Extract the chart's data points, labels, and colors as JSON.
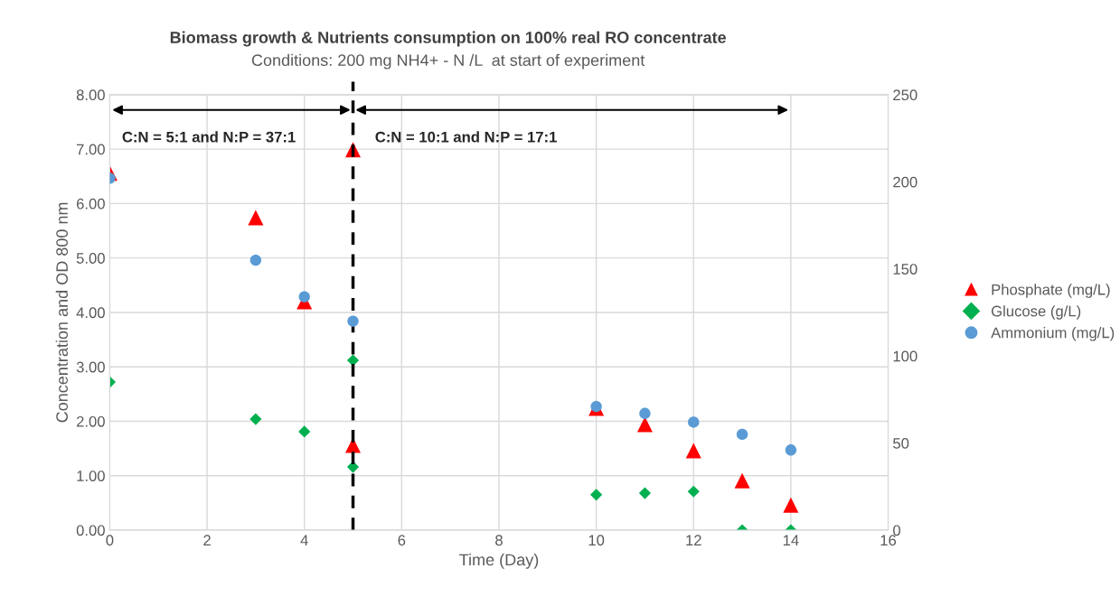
{
  "chart_data": {
    "type": "scatter",
    "title": "Biomass growth & Nutrients consumption on 100% real RO concentrate",
    "subtitle": "Conditions: 200 mg NH4+ - N /L  at start of experiment",
    "xlabel": "Time (Day)",
    "ylabel": "Concentration and OD 800 nm",
    "xlim": [
      0,
      16
    ],
    "xticks": [
      0,
      2,
      4,
      6,
      8,
      10,
      12,
      14,
      16
    ],
    "ylim": [
      0,
      8
    ],
    "yticks": [
      {
        "value": 0,
        "label": "0.00"
      },
      {
        "value": 1,
        "label": "1.00"
      },
      {
        "value": 2,
        "label": "2.00"
      },
      {
        "value": 3,
        "label": "3.00"
      },
      {
        "value": 4,
        "label": "4.00"
      },
      {
        "value": 5,
        "label": "5.00"
      },
      {
        "value": 6,
        "label": "6.00"
      },
      {
        "value": 7,
        "label": "7.00"
      },
      {
        "value": 8,
        "label": "8.00"
      }
    ],
    "y2lim": [
      0,
      250
    ],
    "y2ticks": [
      0,
      50,
      100,
      150,
      200,
      250
    ],
    "grid": true,
    "legend": "right",
    "series": [
      {
        "name": "Phosphate (mg/L)",
        "color": "#ff0000",
        "marker": "triangle",
        "x": [
          0,
          3,
          4,
          5,
          5,
          10,
          11,
          12,
          13,
          14
        ],
        "values": [
          6.56,
          5.74,
          4.2,
          6.99,
          1.56,
          2.24,
          1.94,
          1.46,
          0.91,
          0.46
        ]
      },
      {
        "name": "Glucose (g/L)",
        "color": "#00b050",
        "marker": "diamond",
        "x": [
          0,
          3,
          4,
          5,
          5,
          10,
          11,
          12,
          13,
          14
        ],
        "values": [
          2.72,
          2.04,
          1.81,
          3.12,
          1.16,
          0.65,
          0.68,
          0.71,
          0,
          0
        ]
      },
      {
        "name": "Ammonium (mg/L)",
        "color": "#5b9bd5",
        "marker": "circle",
        "axis": "y2",
        "x": [
          0,
          3,
          4,
          5,
          10,
          11,
          12,
          13,
          14
        ],
        "values": [
          202,
          155,
          134,
          120,
          71,
          67,
          62,
          55,
          46
        ]
      }
    ],
    "ref_lines": [
      {
        "axis": "x",
        "value": 5,
        "color": "#000000",
        "line_style": "dashed"
      }
    ],
    "annotations": [
      "C:N = 5:1 and N:P = 37:1",
      "C:N = 10:1 and N:P = 17:1"
    ]
  }
}
